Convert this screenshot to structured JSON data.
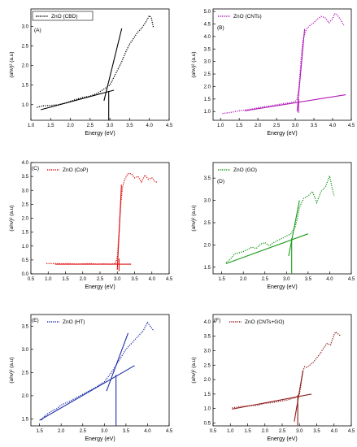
{
  "chart_data": [
    {
      "type": "line",
      "panel": "(A)",
      "legend": "ZnO (CBD)",
      "xlabel": "Energy (eV)",
      "ylabel": "(ahν)² (a.u)",
      "xlim": [
        1.0,
        4.5
      ],
      "ylim": [
        0.6,
        3.45
      ],
      "xticks": [
        1.0,
        1.5,
        2.0,
        2.5,
        3.0,
        3.5,
        4.0,
        4.5
      ],
      "yticks": [
        1.0,
        1.5,
        2.0,
        2.5,
        3.0
      ],
      "legend_position": "top-left",
      "series": [
        {
          "style": "dotted",
          "color": "#000000",
          "x": [
            1.15,
            1.3,
            1.5,
            1.7,
            1.9,
            2.1,
            2.3,
            2.5,
            2.7,
            2.85,
            3.0,
            3.1,
            3.2,
            3.3,
            3.4,
            3.5,
            3.6,
            3.7,
            3.8,
            3.9,
            4.0,
            4.05,
            4.1
          ],
          "y": [
            0.93,
            0.97,
            0.98,
            1.0,
            1.05,
            1.12,
            1.18,
            1.22,
            1.3,
            1.4,
            1.5,
            1.7,
            1.9,
            2.1,
            2.35,
            2.55,
            2.7,
            2.85,
            2.95,
            3.1,
            3.28,
            3.22,
            2.98
          ]
        }
      ],
      "fit_lines": [
        {
          "color": "#000000",
          "x": [
            1.25,
            3.1
          ],
          "y": [
            0.87,
            1.37
          ]
        },
        {
          "color": "#000000",
          "x": [
            2.85,
            3.3
          ],
          "y": [
            1.1,
            2.95
          ]
        },
        {
          "color": "#000000",
          "x": [
            2.97,
            2.97
          ],
          "y": [
            0.6,
            1.35
          ]
        }
      ]
    },
    {
      "type": "line",
      "panel": "(B)",
      "legend": "ZnO (CNTs)",
      "xlabel": "Energy (eV)",
      "ylabel": "(ahν)² (a.u)",
      "xlim": [
        0.8,
        4.5
      ],
      "ylim": [
        0.65,
        5.1
      ],
      "xticks": [
        1.0,
        1.5,
        2.0,
        2.5,
        3.0,
        3.5,
        4.0,
        4.5
      ],
      "yticks": [
        1.0,
        1.5,
        2.0,
        2.5,
        3.0,
        3.5,
        4.0,
        4.5,
        5.0
      ],
      "legend_position": "top-left",
      "series": [
        {
          "style": "dotted",
          "color": "#b21bb8",
          "x": [
            1.05,
            1.3,
            1.5,
            1.7,
            1.9,
            2.1,
            2.3,
            2.5,
            2.7,
            2.9,
            3.0,
            3.05,
            3.1,
            3.15,
            3.2,
            3.25,
            3.3,
            3.4,
            3.5,
            3.6,
            3.7,
            3.8,
            3.9,
            4.0,
            4.05,
            4.1,
            4.2,
            4.3
          ],
          "y": [
            0.92,
            0.97,
            1.03,
            1.07,
            1.12,
            1.18,
            1.22,
            1.27,
            1.32,
            1.36,
            1.4,
            1.5,
            2.0,
            3.0,
            3.8,
            4.1,
            4.3,
            4.45,
            4.55,
            4.7,
            4.8,
            4.75,
            4.55,
            4.7,
            4.9,
            4.9,
            4.7,
            4.45
          ]
        }
      ],
      "fit_lines": [
        {
          "color": "#b21bb8",
          "x": [
            1.65,
            4.35
          ],
          "y": [
            1.03,
            1.67
          ]
        },
        {
          "color": "#b21bb8",
          "x": [
            3.05,
            3.25
          ],
          "y": [
            1.0,
            4.3
          ]
        },
        {
          "color": "#b21bb8",
          "x": [
            3.09,
            3.09
          ],
          "y": [
            0.95,
            1.5
          ]
        }
      ]
    },
    {
      "type": "line",
      "panel": "(C)",
      "legend": "ZnO (CoP)",
      "xlabel": "Energy (eV)",
      "ylabel": "(ahν)² (a.u)",
      "xlim": [
        0.5,
        4.5
      ],
      "ylim": [
        0.0,
        4.0
      ],
      "xticks": [
        0.5,
        1.0,
        1.5,
        2.0,
        2.5,
        3.0,
        3.5,
        4.0,
        4.5
      ],
      "yticks": [
        0.0,
        0.5,
        1.0,
        1.5,
        2.0,
        2.5,
        3.0,
        3.5,
        4.0
      ],
      "legend_position": "top-left",
      "series": [
        {
          "style": "dotted",
          "color": "#e01010",
          "x": [
            0.95,
            1.2,
            1.4,
            1.6,
            1.8,
            2.0,
            2.2,
            2.4,
            2.6,
            2.8,
            2.95,
            3.0,
            3.05,
            3.1,
            3.15,
            3.2,
            3.3,
            3.4,
            3.5,
            3.6,
            3.7,
            3.8,
            3.9,
            4.0,
            4.1,
            4.15
          ],
          "y": [
            0.37,
            0.37,
            0.36,
            0.37,
            0.35,
            0.36,
            0.37,
            0.35,
            0.36,
            0.35,
            0.37,
            0.6,
            1.5,
            2.5,
            3.1,
            3.35,
            3.6,
            3.6,
            3.45,
            3.5,
            3.3,
            3.55,
            3.4,
            3.45,
            3.3,
            3.3
          ]
        }
      ],
      "fit_lines": [
        {
          "color": "#e01010",
          "x": [
            1.2,
            3.4
          ],
          "y": [
            0.35,
            0.35
          ]
        },
        {
          "color": "#e01010",
          "x": [
            3.0,
            3.12
          ],
          "y": [
            0.15,
            3.2
          ]
        },
        {
          "color": "#e01010",
          "x": [
            3.05,
            3.05
          ],
          "y": [
            0.1,
            0.55
          ]
        }
      ]
    },
    {
      "type": "line",
      "panel": "(D)",
      "legend": "ZnO (GO)",
      "xlabel": "Energy (eV)",
      "ylabel": "(ahν)² (a.u)",
      "xlim": [
        1.3,
        4.5
      ],
      "ylim": [
        1.35,
        3.85
      ],
      "xticks": [
        1.5,
        2.0,
        2.5,
        3.0,
        3.5,
        4.0,
        4.5
      ],
      "yticks": [
        1.5,
        2.0,
        2.5,
        3.0,
        3.5
      ],
      "legend_position": "top-left",
      "series": [
        {
          "style": "dotted",
          "color": "#1a9a1a",
          "x": [
            1.6,
            1.7,
            1.8,
            2.0,
            2.1,
            2.2,
            2.3,
            2.4,
            2.5,
            2.6,
            2.7,
            2.8,
            2.9,
            3.0,
            3.1,
            3.2,
            3.25,
            3.3,
            3.4,
            3.5,
            3.6,
            3.7,
            3.8,
            3.9,
            4.0,
            4.05,
            4.1
          ],
          "y": [
            1.6,
            1.68,
            1.8,
            1.85,
            1.9,
            1.95,
            1.92,
            2.02,
            2.05,
            1.98,
            2.05,
            2.1,
            2.15,
            2.2,
            2.25,
            2.4,
            2.6,
            2.85,
            3.05,
            3.1,
            3.2,
            2.95,
            3.2,
            3.3,
            3.55,
            3.3,
            3.1
          ]
        }
      ],
      "fit_lines": [
        {
          "color": "#1a9a1a",
          "x": [
            1.6,
            3.5
          ],
          "y": [
            1.58,
            2.25
          ]
        },
        {
          "color": "#1a9a1a",
          "x": [
            3.05,
            3.3
          ],
          "y": [
            1.75,
            3.0
          ]
        },
        {
          "color": "#1a9a1a",
          "x": [
            3.12,
            3.12
          ],
          "y": [
            1.35,
            2.15
          ]
        }
      ]
    },
    {
      "type": "line",
      "panel": "(E)",
      "legend": "ZnO (HT)",
      "xlabel": "Energy (eV)",
      "ylabel": "(ahν)² (a.u)",
      "xlim": [
        1.3,
        4.5
      ],
      "ylim": [
        1.35,
        3.75
      ],
      "xticks": [
        1.5,
        2.0,
        2.5,
        3.0,
        3.5,
        4.0,
        4.5
      ],
      "yticks": [
        1.5,
        2.0,
        2.5,
        3.0,
        3.5
      ],
      "legend_position": "top-left",
      "series": [
        {
          "style": "dotted",
          "color": "#1e2fa8",
          "x": [
            1.55,
            1.6,
            1.7,
            1.8,
            1.9,
            2.0,
            2.2,
            2.4,
            2.6,
            2.8,
            3.0,
            3.1,
            3.2,
            3.3,
            3.4,
            3.5,
            3.6,
            3.7,
            3.8,
            3.9,
            4.0,
            4.1,
            4.15
          ],
          "y": [
            1.47,
            1.55,
            1.62,
            1.68,
            1.72,
            1.8,
            1.88,
            1.98,
            2.08,
            2.18,
            2.3,
            2.42,
            2.55,
            2.7,
            2.85,
            3.0,
            3.1,
            3.2,
            3.3,
            3.4,
            3.58,
            3.45,
            3.4
          ]
        }
      ],
      "fit_lines": [
        {
          "color": "#1e2fa8",
          "x": [
            1.5,
            3.7
          ],
          "y": [
            1.47,
            2.65
          ]
        },
        {
          "color": "#1e2fa8",
          "x": [
            3.05,
            3.55
          ],
          "y": [
            2.1,
            3.35
          ]
        },
        {
          "color": "#1e2fa8",
          "x": [
            3.27,
            3.27
          ],
          "y": [
            1.35,
            2.45
          ]
        }
      ]
    },
    {
      "type": "line",
      "panel": "(F)",
      "legend": "ZnO (CNTs+GO)",
      "xlabel": "Energy (eV)",
      "ylabel": "(ahν)² (a.u)",
      "xlim": [
        0.5,
        4.5
      ],
      "ylim": [
        0.4,
        4.25
      ],
      "xticks": [
        0.5,
        1.0,
        1.5,
        2.0,
        2.5,
        3.0,
        3.5,
        4.0,
        4.5
      ],
      "yticks": [
        0.5,
        1.0,
        1.5,
        2.0,
        2.5,
        3.0,
        3.5,
        4.0
      ],
      "legend_position": "top-left",
      "series": [
        {
          "style": "dotted",
          "color": "#8b1a1a",
          "x": [
            1.05,
            1.2,
            1.4,
            1.6,
            1.8,
            2.0,
            2.2,
            2.4,
            2.6,
            2.8,
            2.9,
            3.0,
            3.05,
            3.1,
            3.15,
            3.2,
            3.3,
            3.4,
            3.5,
            3.6,
            3.7,
            3.8,
            3.9,
            4.0,
            4.05,
            4.1,
            4.2
          ],
          "y": [
            1.02,
            1.05,
            1.08,
            1.1,
            1.12,
            1.18,
            1.2,
            1.25,
            1.28,
            1.35,
            1.38,
            1.5,
            1.9,
            2.3,
            2.45,
            2.42,
            2.5,
            2.6,
            2.75,
            2.9,
            3.1,
            3.25,
            3.2,
            3.55,
            3.65,
            3.6,
            3.5
          ]
        }
      ],
      "fit_lines": [
        {
          "color": "#8b1a1a",
          "x": [
            1.05,
            3.35
          ],
          "y": [
            0.98,
            1.5
          ]
        },
        {
          "color": "#8b1a1a",
          "x": [
            2.85,
            3.1
          ],
          "y": [
            0.55,
            2.3
          ]
        },
        {
          "color": "#8b1a1a",
          "x": [
            2.95,
            2.95
          ],
          "y": [
            0.42,
            1.45
          ]
        }
      ]
    }
  ]
}
